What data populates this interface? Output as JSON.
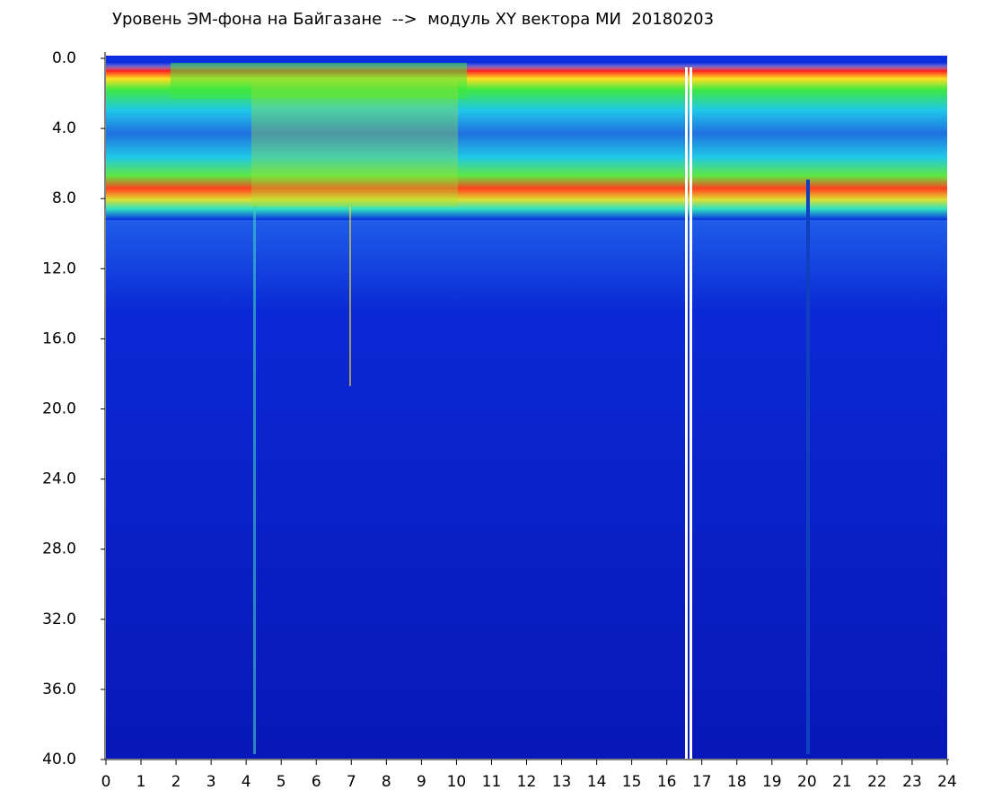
{
  "chart_data": {
    "type": "spectrogram",
    "title": "Уровень ЭМ-фона на Байгазане  -->  модуль XY вектора МИ  20180203",
    "xlim": [
      0,
      24
    ],
    "xticks": [
      0,
      1,
      2,
      3,
      4,
      5,
      6,
      7,
      8,
      9,
      10,
      11,
      12,
      13,
      14,
      15,
      16,
      17,
      18,
      19,
      20,
      21,
      22,
      23,
      24
    ],
    "ylim": [
      0,
      40
    ],
    "yticks": [
      {
        "value": 0,
        "label": "0.0"
      },
      {
        "value": 4,
        "label": "4.0"
      },
      {
        "value": 8,
        "label": "8.0"
      },
      {
        "value": 12,
        "label": "12.0"
      },
      {
        "value": 16,
        "label": "16.0"
      },
      {
        "value": 20,
        "label": "20.0"
      },
      {
        "value": 24,
        "label": "24.0"
      },
      {
        "value": 28,
        "label": "28.0"
      },
      {
        "value": 32,
        "label": "32.0"
      },
      {
        "value": 36,
        "label": "36.0"
      },
      {
        "value": 40,
        "label": "40.0"
      }
    ]
  }
}
